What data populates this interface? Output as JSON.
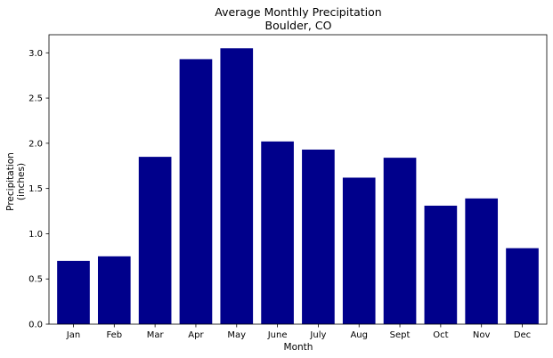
{
  "chart_data": {
    "type": "bar",
    "title": "Average Monthly Precipitation",
    "subtitle": "Boulder, CO",
    "xlabel": "Month",
    "ylabel_line1": "Precipitation",
    "ylabel_line2": "(inches)",
    "categories": [
      "Jan",
      "Feb",
      "Mar",
      "Apr",
      "May",
      "June",
      "July",
      "Aug",
      "Sept",
      "Oct",
      "Nov",
      "Dec"
    ],
    "values": [
      0.7,
      0.75,
      1.85,
      2.93,
      3.05,
      2.02,
      1.93,
      1.62,
      1.84,
      1.31,
      1.39,
      0.84
    ],
    "ylim": [
      0,
      3.2
    ],
    "yticks": [
      0.0,
      0.5,
      1.0,
      1.5,
      2.0,
      2.5,
      3.0
    ],
    "ytick_labels": [
      "0.0",
      "0.5",
      "1.0",
      "1.5",
      "2.0",
      "2.5",
      "3.0"
    ],
    "bar_color": "#00008b",
    "grid": false,
    "legend": "none"
  }
}
